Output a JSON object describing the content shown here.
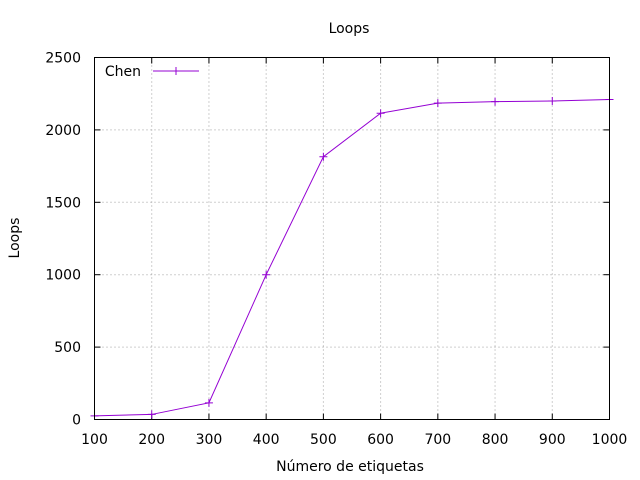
{
  "chart_data": {
    "type": "line",
    "title": "Loops",
    "xlabel": "Número de etiquetas",
    "ylabel": "Loops",
    "xlim": [
      100,
      1000
    ],
    "ylim": [
      0,
      2500
    ],
    "x_ticks": [
      100,
      200,
      300,
      400,
      500,
      600,
      700,
      800,
      900,
      1000
    ],
    "y_ticks": [
      0,
      500,
      1000,
      1500,
      2000,
      2500
    ],
    "grid": true,
    "legend_position": "top-left",
    "series": [
      {
        "name": "Chen",
        "color": "#9400d3",
        "marker": "plus",
        "x": [
          100,
          200,
          300,
          400,
          500,
          600,
          700,
          800,
          900,
          1000
        ],
        "y": [
          25,
          35,
          115,
          1000,
          1815,
          2115,
          2185,
          2195,
          2200,
          2210
        ]
      }
    ]
  }
}
